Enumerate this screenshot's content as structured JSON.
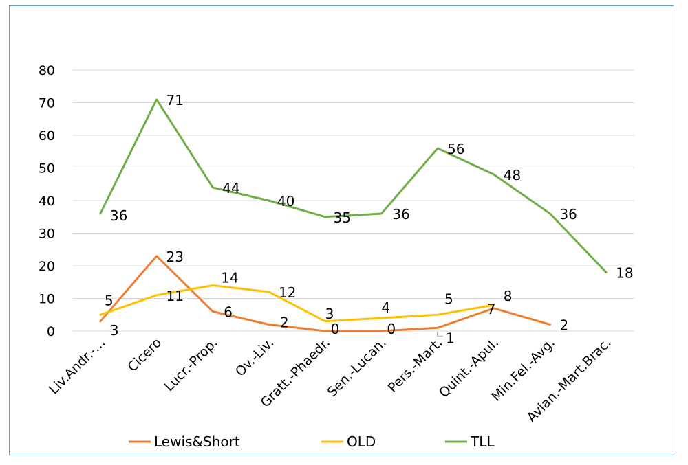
{
  "chart_data": {
    "type": "line",
    "title": "",
    "xlabel": "",
    "ylabel": "",
    "ylim": [
      0,
      80
    ],
    "yticks": [
      "0",
      "10",
      "20",
      "30",
      "40",
      "50",
      "60",
      "70",
      "80"
    ],
    "grid": true,
    "legend_position": "bottom",
    "categories": [
      "Liv.Andr.-...",
      "Cicero",
      "Lucr.-Prop.",
      "Ov.-Liv.",
      "Gratt.-Phaedr.",
      "Sen.-Lucan.",
      "Pers.-Mart.",
      "Quint.-Apul.",
      "Min.Fel.-Avg.",
      "Avian.-Mart.Brac."
    ],
    "series": [
      {
        "name": "Lewis&Short",
        "color": "#ed7d31",
        "values": [
          3,
          23,
          6,
          2,
          0,
          0,
          1,
          7,
          2,
          null
        ],
        "labels": [
          "3",
          "23",
          "6",
          "2",
          "0",
          "0",
          "1",
          "7",
          "2",
          ""
        ]
      },
      {
        "name": "OLD",
        "color": "#ffc000",
        "values": [
          5,
          11,
          14,
          12,
          3,
          4,
          5,
          8,
          null,
          null
        ],
        "labels": [
          "5",
          "11",
          "14",
          "12",
          "3",
          "4",
          "5",
          "8",
          "",
          ""
        ]
      },
      {
        "name": "TLL",
        "color": "#70ad47",
        "values": [
          36,
          71,
          44,
          40,
          35,
          36,
          56,
          48,
          36,
          18
        ],
        "labels": [
          "36",
          "71",
          "44",
          "40",
          "35",
          "36",
          "56",
          "48",
          "36",
          "18"
        ]
      }
    ]
  }
}
